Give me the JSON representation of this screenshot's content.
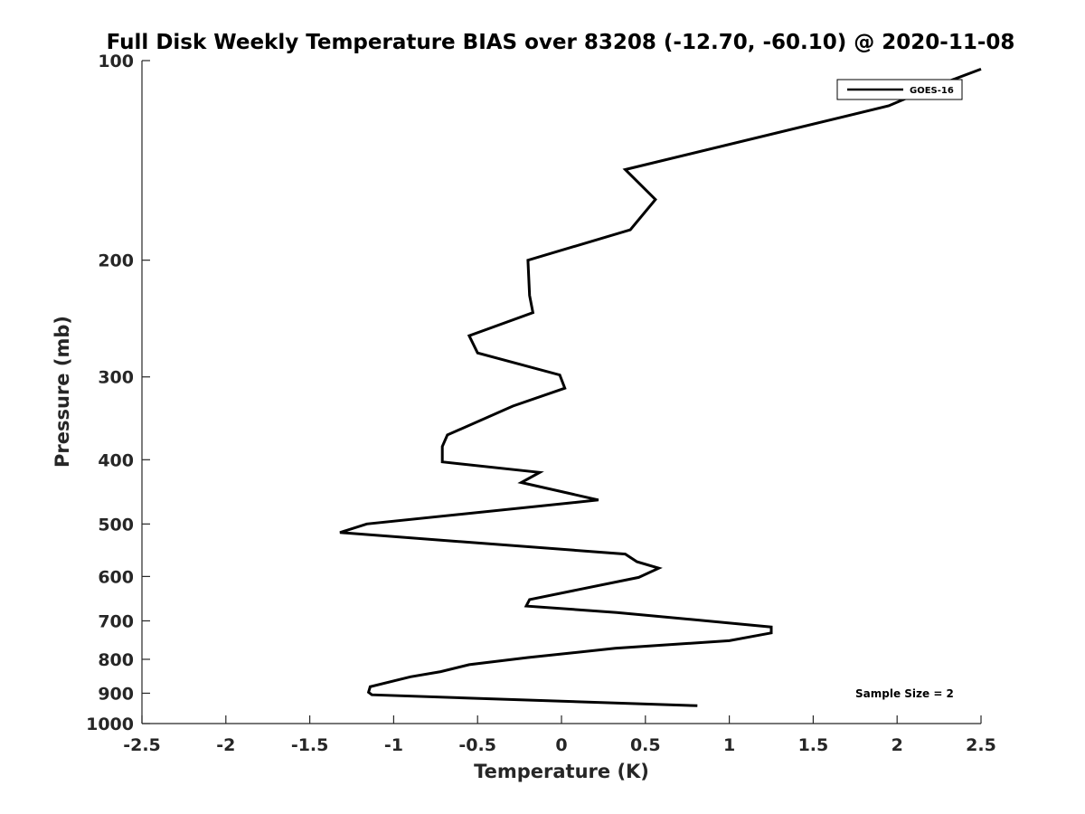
{
  "chart_data": {
    "type": "line",
    "title": "Full Disk Weekly Temperature BIAS over 83208 (-12.70, -60.10) @ 2020-11-08",
    "xlabel": "Temperature (K)",
    "ylabel": "Pressure (mb)",
    "xlim": [
      -2.5,
      2.5
    ],
    "ylim": [
      1000,
      100
    ],
    "y_scale": "log",
    "y_reversed": true,
    "x_ticks": [
      "-2.5",
      "-2",
      "-1.5",
      "-1",
      "-0.5",
      "0",
      "0.5",
      "1",
      "1.5",
      "2",
      "2.5"
    ],
    "y_ticks": [
      "100",
      "200",
      "300",
      "400",
      "500",
      "600",
      "700",
      "800",
      "900",
      "1000"
    ],
    "grid": false,
    "legend_position": "top-right",
    "annotation": "Sample Size = 2",
    "series": [
      {
        "name": "GOES-16",
        "color": "#000000",
        "x": [
          2.5,
          2.2,
          1.95,
          0.38,
          0.56,
          0.41,
          -0.2,
          -0.19,
          -0.17,
          -0.55,
          -0.5,
          -0.01,
          0.02,
          -0.29,
          -0.68,
          -0.71,
          -0.71,
          -0.13,
          -0.24,
          0.22,
          -1.16,
          -1.32,
          0.38,
          0.45,
          0.58,
          0.46,
          -0.19,
          -0.21,
          0.33,
          1.25,
          1.25,
          1.0,
          0.32,
          -0.2,
          -0.55,
          -0.72,
          -0.9,
          -1.14,
          -1.15,
          -1.13,
          -0.57,
          0.81
        ],
        "y": [
          103,
          110,
          117,
          146,
          162,
          180,
          200,
          226,
          240,
          260,
          276,
          298,
          312,
          332,
          367,
          382,
          403,
          418,
          433,
          460,
          500,
          515,
          555,
          570,
          583,
          602,
          650,
          665,
          680,
          715,
          730,
          750,
          770,
          795,
          815,
          835,
          850,
          880,
          897,
          905,
          915,
          940
        ]
      }
    ]
  }
}
